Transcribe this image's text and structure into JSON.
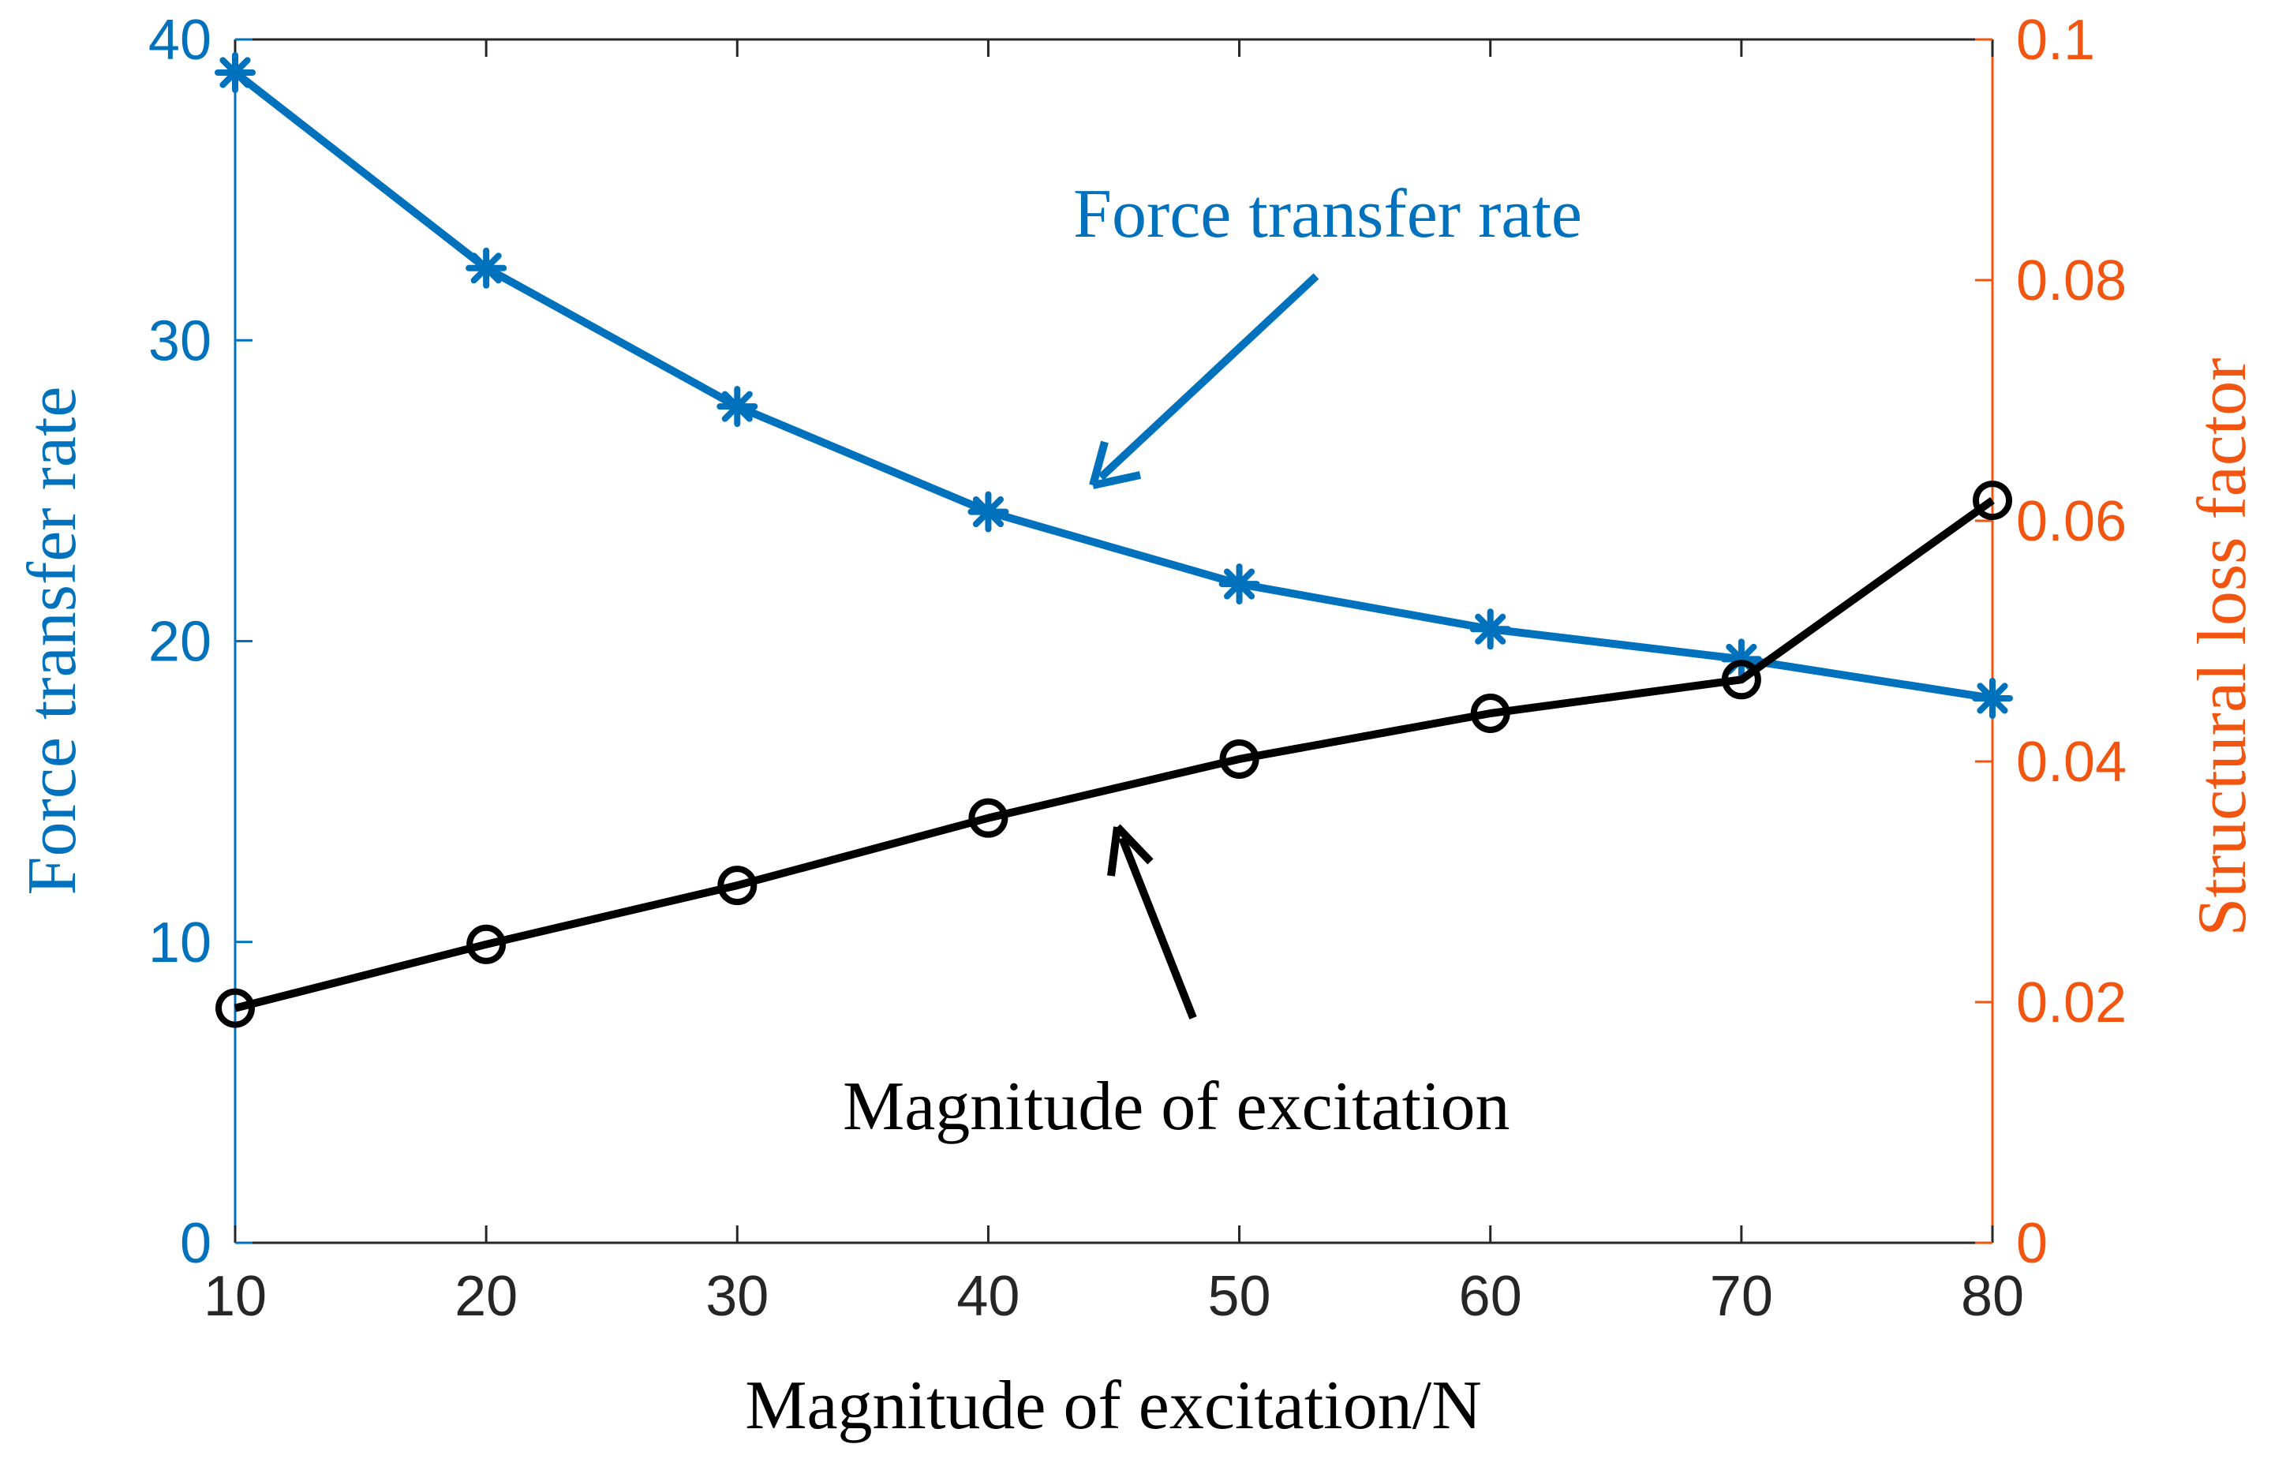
{
  "chart_data": {
    "type": "line",
    "x": [
      10,
      20,
      30,
      40,
      50,
      60,
      70,
      80
    ],
    "xlabel": "Magnitude of excitation/N",
    "xlim": [
      10,
      80
    ],
    "x_ticks": [
      "10",
      "20",
      "30",
      "40",
      "50",
      "60",
      "70",
      "80"
    ],
    "y_left": {
      "label": "Force transfer rate",
      "lim": [
        0,
        40
      ],
      "ticks": [
        "0",
        "10",
        "20",
        "30",
        "40"
      ],
      "color": "#0072BD"
    },
    "y_right": {
      "label": "Structural loss factor",
      "lim": [
        0,
        0.1
      ],
      "ticks": [
        "0",
        "0.02",
        "0.04",
        "0.06",
        "0.08",
        "0.1"
      ],
      "color": "#F2550F"
    },
    "series": [
      {
        "name": "Force transfer rate",
        "axis": "left",
        "marker": "asterisk",
        "color": "#0072BD",
        "values": [
          38.9,
          32.4,
          27.8,
          24.3,
          21.9,
          20.4,
          19.4,
          18.1
        ]
      },
      {
        "name": "Structural loss factor",
        "axis": "right",
        "marker": "circle",
        "color": "#000000",
        "values": [
          0.0195,
          0.0248,
          0.0297,
          0.0353,
          0.0402,
          0.044,
          0.0468,
          0.0617
        ]
      }
    ],
    "annotations": [
      {
        "text": "Force transfer rate",
        "color": "#0072BD"
      },
      {
        "text": "Magnitude of excitation",
        "color": "#000000"
      }
    ],
    "grid": false
  }
}
